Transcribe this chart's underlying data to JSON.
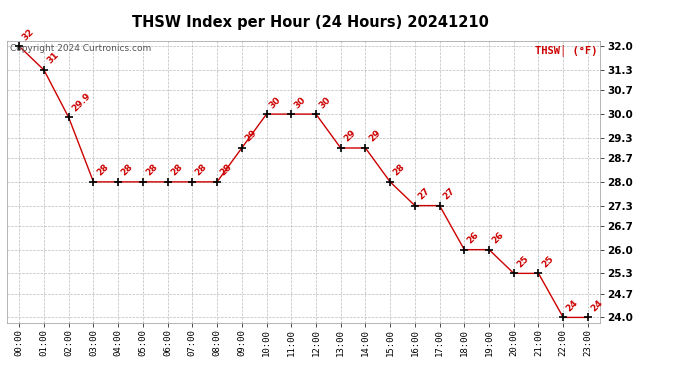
{
  "title": "THSW Index per Hour (24 Hours) 20241210",
  "copyright": "Copyright 2024 Curtronics.com",
  "legend_label": "THSW│ (°F)",
  "hours": [
    0,
    1,
    2,
    3,
    4,
    5,
    6,
    7,
    8,
    9,
    10,
    11,
    12,
    13,
    14,
    15,
    16,
    17,
    18,
    19,
    20,
    21,
    22,
    23
  ],
  "values": [
    32.0,
    31.3,
    29.9,
    28.0,
    28.0,
    28.0,
    28.0,
    28.0,
    28.0,
    29.0,
    30.0,
    30.0,
    30.0,
    29.0,
    29.0,
    28.0,
    27.3,
    27.3,
    26.0,
    26.0,
    25.3,
    25.3,
    24.0,
    24.0
  ],
  "labels": [
    "32",
    "31",
    "29.9",
    "28",
    "28",
    "28",
    "28",
    "28",
    "28",
    "29",
    "30",
    "30",
    "30",
    "29",
    "29",
    "28",
    "27",
    "27",
    "26",
    "26",
    "25",
    "25",
    "24",
    "24"
  ],
  "line_color": "#cc0000",
  "marker_color": "#000000",
  "label_color": "#cc0000",
  "grid_color": "#bbbbbb",
  "bg_color": "#ffffff",
  "ylim_min": 23.85,
  "ylim_max": 32.15,
  "yticks": [
    24.0,
    24.7,
    25.3,
    26.0,
    26.7,
    27.3,
    28.0,
    28.7,
    29.3,
    30.0,
    30.7,
    31.3,
    32.0
  ],
  "ytick_labels": [
    "24.0",
    "24.7",
    "25.3",
    "26.0",
    "26.7",
    "27.3",
    "28.0",
    "28.7",
    "29.3",
    "30.0",
    "30.7",
    "31.3",
    "32.0"
  ],
  "figwidth": 6.9,
  "figheight": 3.75,
  "dpi": 100
}
